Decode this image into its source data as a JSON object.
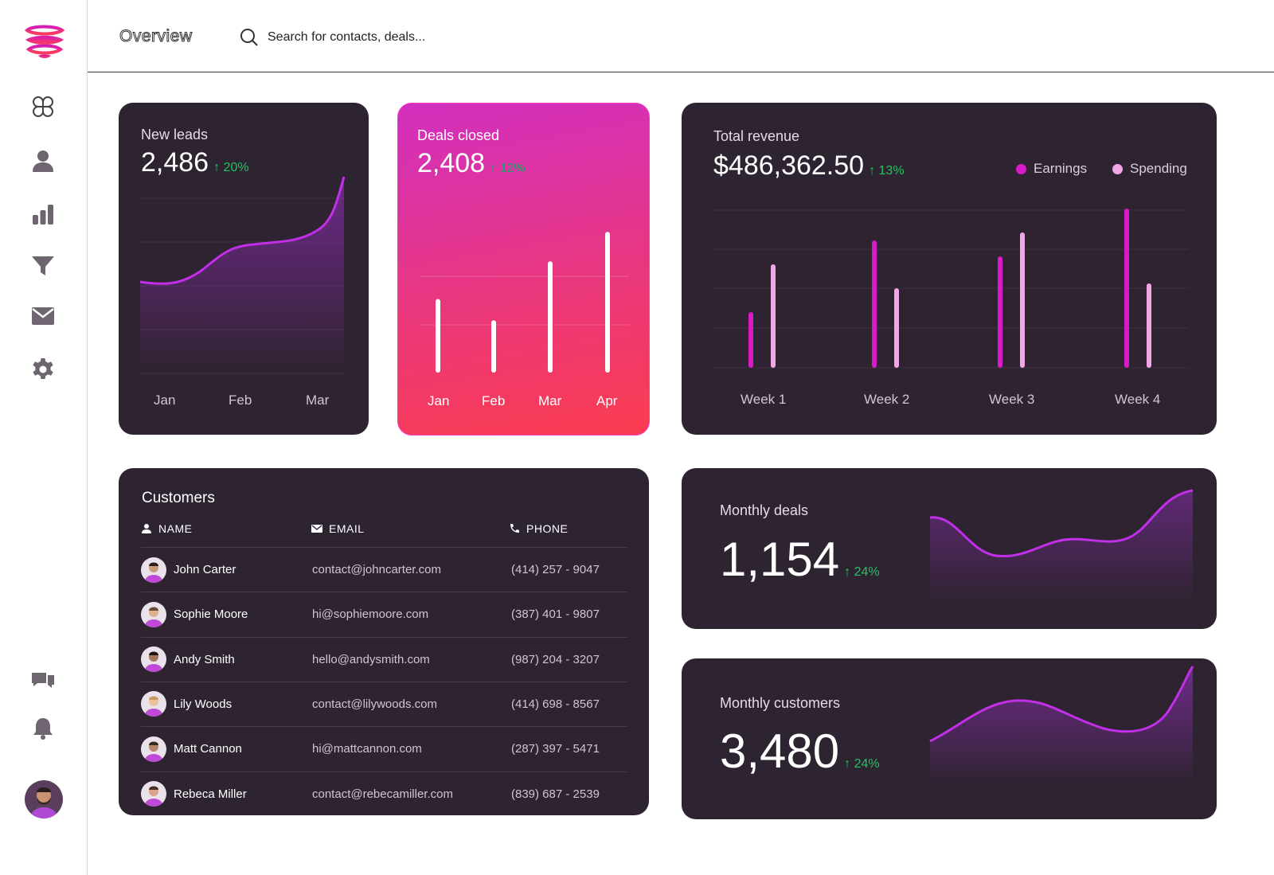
{
  "header": {
    "title": "Overview",
    "search_placeholder": "Search for contacts, deals..."
  },
  "sidebar": {
    "items": [
      "dashboard",
      "contacts",
      "reports",
      "filters",
      "mail",
      "settings"
    ],
    "bottom_items": [
      "messages",
      "notifications"
    ]
  },
  "new_leads": {
    "title": "New leads",
    "value": "2,486",
    "delta": "20%",
    "months": [
      "Jan",
      "Feb",
      "Mar"
    ]
  },
  "deals_closed": {
    "title": "Deals closed",
    "value": "2,408",
    "delta": "12%",
    "months": [
      "Jan",
      "Feb",
      "Mar",
      "Apr"
    ]
  },
  "total_revenue": {
    "title": "Total revenue",
    "value": "$486,362.50",
    "delta": "13%",
    "legend_earnings": "Earnings",
    "legend_spending": "Spending",
    "weeks": [
      "Week 1",
      "Week 2",
      "Week 3",
      "Week 4"
    ]
  },
  "customers": {
    "title": "Customers",
    "col_name": "NAME",
    "col_email": "EMAIL",
    "col_phone": "PHONE",
    "rows": [
      {
        "name": "John Carter",
        "email": "contact@johncarter.com",
        "phone": "(414) 257 - 9047"
      },
      {
        "name": "Sophie Moore",
        "email": "hi@sophiemoore.com",
        "phone": "(387) 401 - 9807"
      },
      {
        "name": "Andy Smith",
        "email": "hello@andysmith.com",
        "phone": "(987) 204 - 3207"
      },
      {
        "name": "Lily Woods",
        "email": "contact@lilywoods.com",
        "phone": "(414) 698 - 8567"
      },
      {
        "name": "Matt Cannon",
        "email": "hi@mattcannon.com",
        "phone": "(287) 397 - 5471"
      },
      {
        "name": "Rebeca Miller",
        "email": "contact@rebecamiller.com",
        "phone": "(839) 687 - 2539"
      }
    ]
  },
  "monthly_deals": {
    "title": "Monthly deals",
    "value": "1,154",
    "delta": "24%"
  },
  "monthly_customers": {
    "title": "Monthly customers",
    "value": "3,480",
    "delta": "24%"
  },
  "colors": {
    "card_bg": "#2e2330",
    "accent_magenta": "#d81bc8",
    "accent_pink_light": "#f3a6e6",
    "delta_green": "#22c55e"
  },
  "chart_data": [
    {
      "type": "area",
      "title": "New leads",
      "categories": [
        "Jan",
        "Feb",
        "Mar"
      ],
      "values": [
        2000,
        2150,
        2486
      ]
    },
    {
      "type": "bar",
      "title": "Deals closed",
      "categories": [
        "Jan",
        "Feb",
        "Mar",
        "Apr"
      ],
      "values": [
        45,
        32,
        68,
        86
      ]
    },
    {
      "type": "bar",
      "title": "Total revenue",
      "categories": [
        "Week 1",
        "Week 2",
        "Week 3",
        "Week 4"
      ],
      "series": [
        {
          "name": "Earnings",
          "values": [
            35,
            80,
            70,
            100
          ]
        },
        {
          "name": "Spending",
          "values": [
            65,
            50,
            85,
            53
          ]
        }
      ]
    }
  ]
}
